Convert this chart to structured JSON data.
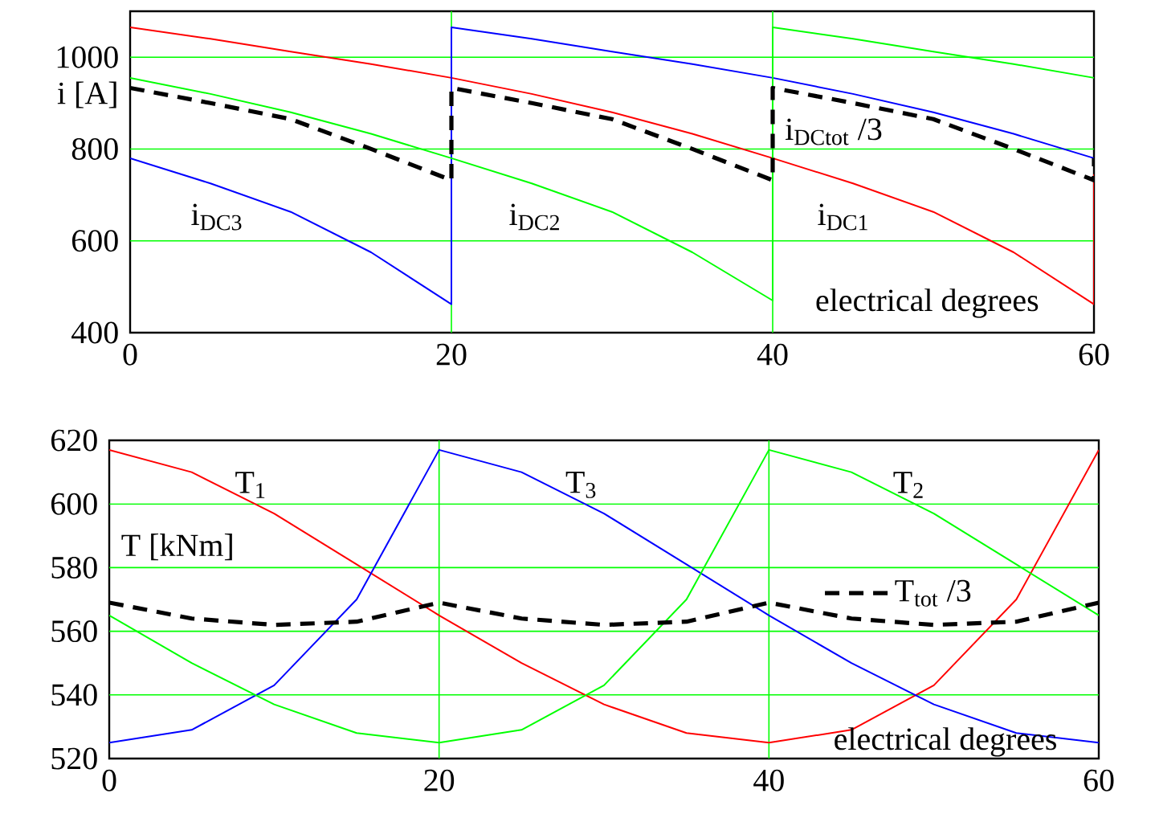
{
  "chart_data": [
    {
      "type": "line",
      "xlabel": "electrical degrees",
      "ylabel": "i [A]",
      "xlim": [
        0,
        60
      ],
      "ylim": [
        400,
        1100
      ],
      "xticks": [
        0,
        20,
        40,
        60
      ],
      "yticks": [
        400,
        600,
        800,
        1000
      ],
      "grid": true,
      "series": [
        {
          "color": "#ff0000",
          "line_style": "solid",
          "x": [
            0,
            5,
            10,
            15,
            20,
            25,
            30,
            35,
            40,
            45,
            50,
            55,
            60,
            60
          ],
          "values": [
            1065,
            1040,
            1012,
            985,
            955,
            920,
            880,
            833,
            780,
            725,
            663,
            575,
            462,
            745
          ]
        },
        {
          "color": "#0000ff",
          "line_style": "solid",
          "x": [
            0,
            5,
            10,
            15,
            20,
            20,
            25,
            30,
            35,
            40,
            45,
            50,
            55,
            60
          ],
          "values": [
            780,
            725,
            663,
            575,
            462,
            1065,
            1040,
            1012,
            985,
            955,
            920,
            880,
            833,
            780
          ]
        },
        {
          "color": "#00ff00",
          "line_style": "solid",
          "x": [
            0,
            5,
            10,
            15,
            20,
            25,
            30,
            35,
            40,
            40,
            45,
            50,
            55,
            60
          ],
          "values": [
            955,
            920,
            880,
            833,
            780,
            725,
            663,
            575,
            470,
            1065,
            1040,
            1012,
            985,
            955
          ]
        },
        {
          "color": "#000000",
          "line_style": "dashed",
          "x": [
            0,
            5,
            10,
            15,
            20,
            20,
            25,
            30,
            35,
            40,
            40,
            45,
            50,
            55,
            60,
            60
          ],
          "values": [
            933,
            900,
            865,
            800,
            732,
            933,
            900,
            865,
            800,
            732,
            933,
            900,
            865,
            800,
            732,
            780
          ]
        }
      ],
      "annotations": [
        "i$_{DC3}$",
        "i$_{DC2}$",
        "i$_{DC1}$",
        "i$_{DCtot}$ /3"
      ]
    },
    {
      "type": "line",
      "xlabel": "electrical degrees",
      "ylabel": "T [kNm]",
      "xlim": [
        0,
        60
      ],
      "ylim": [
        520,
        620
      ],
      "xticks": [
        0,
        20,
        40,
        60
      ],
      "yticks": [
        520,
        540,
        560,
        580,
        600,
        620
      ],
      "grid": true,
      "legend": "right",
      "series": [
        {
          "color": "#ff0000",
          "line_style": "solid",
          "x": [
            0,
            5,
            10,
            15,
            20,
            25,
            30,
            35,
            40,
            45,
            50,
            55,
            60
          ],
          "values": [
            617,
            610,
            597,
            581,
            565,
            550,
            537,
            528,
            525,
            529,
            543,
            570,
            617
          ]
        },
        {
          "color": "#0000ff",
          "line_style": "solid",
          "x": [
            0,
            5,
            10,
            15,
            20,
            25,
            30,
            35,
            40,
            45,
            50,
            55,
            60
          ],
          "values": [
            525,
            529,
            543,
            570,
            617,
            610,
            597,
            581,
            565,
            550,
            537,
            528,
            525
          ]
        },
        {
          "color": "#00ff00",
          "line_style": "solid",
          "x": [
            0,
            5,
            10,
            15,
            20,
            25,
            30,
            35,
            40,
            45,
            50,
            55,
            60
          ],
          "values": [
            565,
            550,
            537,
            528,
            525,
            529,
            543,
            570,
            617,
            610,
            597,
            581,
            565
          ]
        },
        {
          "name": "T$_{tot}$ /3",
          "color": "#000000",
          "line_style": "dashed",
          "x": [
            0,
            5,
            10,
            15,
            20,
            25,
            30,
            35,
            40,
            45,
            50,
            55,
            60
          ],
          "values": [
            569,
            564,
            562,
            563,
            569,
            564,
            562,
            563,
            569,
            564,
            562,
            563,
            569
          ]
        }
      ],
      "annotations": [
        "T$_{1}$",
        "T$_{3}$",
        "T$_{2}$"
      ]
    }
  ]
}
